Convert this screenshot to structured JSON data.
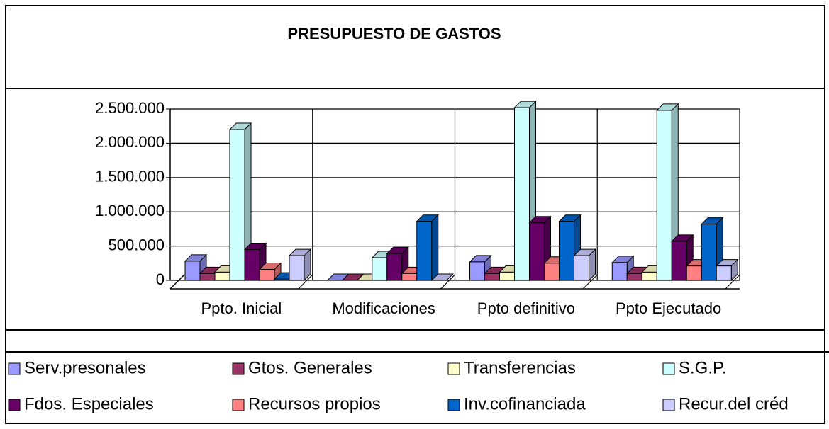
{
  "chart_data": {
    "type": "bar",
    "title": "PRESUPUESTO DE GASTOS",
    "categories": [
      "Ppto. Inicial",
      "Modificaciones",
      "Ppto definitivo",
      "Ppto Ejecutado"
    ],
    "series": [
      {
        "name": "Serv.presonales",
        "color": "#9999ff",
        "values": [
          280000,
          0,
          270000,
          260000
        ]
      },
      {
        "name": "Gtos. Generales",
        "color": "#993366",
        "values": [
          100000,
          0,
          100000,
          100000
        ]
      },
      {
        "name": "Transferencias",
        "color": "#ffffcc",
        "values": [
          120000,
          0,
          120000,
          120000
        ]
      },
      {
        "name": "S.G.P.",
        "color": "#ccffff",
        "values": [
          2200000,
          330000,
          2520000,
          2480000
        ]
      },
      {
        "name": "Fdos. Especiales",
        "color": "#660066",
        "values": [
          450000,
          390000,
          840000,
          570000
        ]
      },
      {
        "name": "Recursos propios",
        "color": "#ff8080",
        "values": [
          160000,
          100000,
          250000,
          210000
        ]
      },
      {
        "name": "Inv.cofinanciada",
        "color": "#0066cc",
        "values": [
          20000,
          860000,
          860000,
          820000
        ]
      },
      {
        "name": "Recur.del créd",
        "color": "#ccccff",
        "values": [
          360000,
          0,
          360000,
          210000
        ]
      }
    ],
    "ylim": [
      0,
      2500000
    ],
    "yticks": [
      0,
      {
        "value": 500000,
        "label": "500.000"
      },
      {
        "value": 1000000,
        "label": "1.000.000"
      },
      {
        "value": 1500000,
        "label": "1.500.000"
      },
      {
        "value": 2000000,
        "label": "2.000.000"
      },
      {
        "value": 2500000,
        "label": "2.500.000"
      }
    ],
    "grid": true
  }
}
